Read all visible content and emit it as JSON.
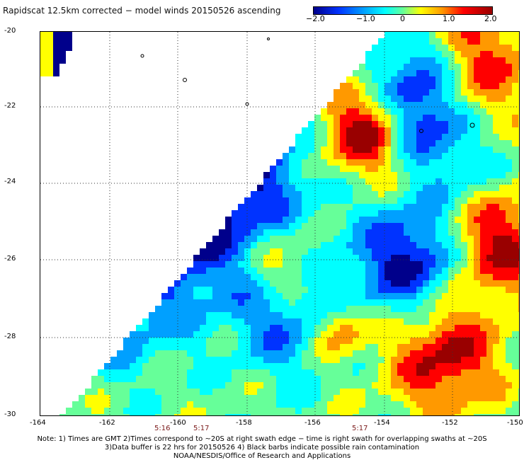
{
  "title": "Rapidscat 12.5km corrected − model winds 20150526 ascending",
  "colorbar": {
    "ticks": [
      "−2.0",
      "−1.0",
      "0",
      "1.0",
      "2.0"
    ],
    "colors": [
      "#00008b",
      "#0033ff",
      "#00a0ff",
      "#00ffff",
      "#66ff99",
      "#ffff00",
      "#ff9900",
      "#ff0000",
      "#990000"
    ]
  },
  "axes": {
    "y_ticks": [
      "-20",
      "-22",
      "-24",
      "-26",
      "-28",
      "-30"
    ],
    "x_ticks": [
      "-164",
      "-162",
      "-160",
      "-158",
      "-156",
      "-154",
      "-152",
      "-150"
    ]
  },
  "time_labels": [
    "5:16",
    "5:17",
    "5:17"
  ],
  "notes": {
    "line1": "Note: 1) Times are GMT 2)Times correspond to ~20S at right swath edge − time is right swath for overlapping swaths at ~20S",
    "line2": "3)Data buffer is 22 hrs for 20150526 4) Black barbs indicate possible rain contamination",
    "line3": "NOAA/NESDIS/Office of Research and Applications"
  }
}
